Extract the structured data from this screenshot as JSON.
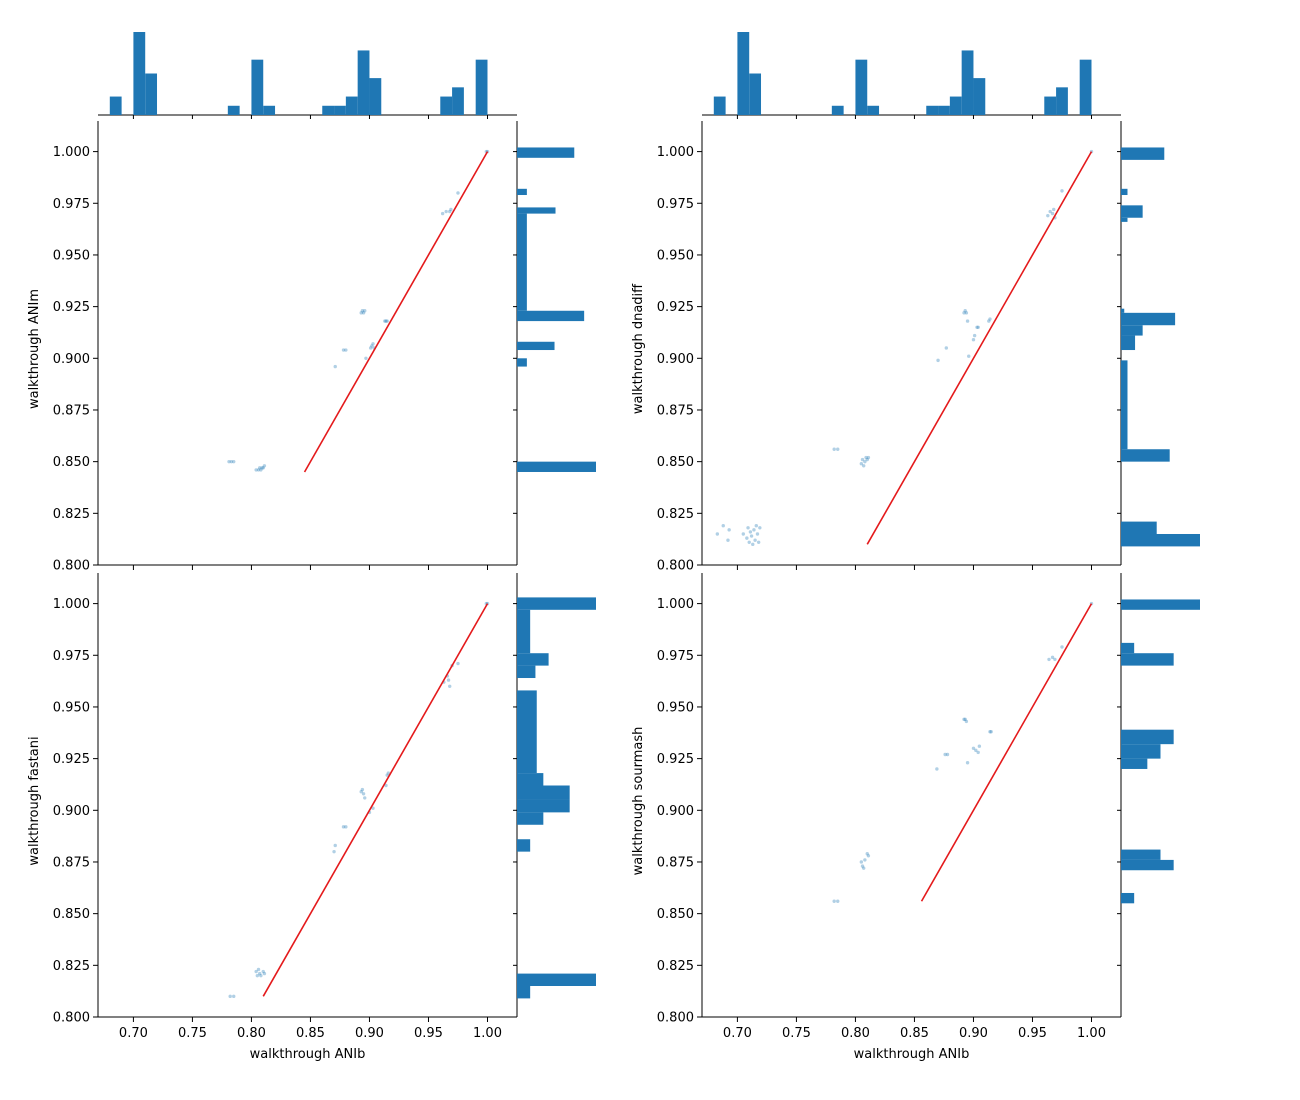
{
  "chart_data": [
    {
      "type": "scatter",
      "xlabel": "",
      "ylabel": "walkthrough ANIm",
      "show_xtick_labels": false,
      "xlim": [
        0.67,
        1.025
      ],
      "ylim": [
        0.8,
        1.009
      ],
      "x_ticks": [
        "0.70",
        "0.75",
        "0.80",
        "0.85",
        "0.90",
        "0.95",
        "1.00"
      ],
      "y_ticks": [
        "0.800",
        "0.825",
        "0.850",
        "0.875",
        "0.900",
        "0.925",
        "0.950",
        "0.975",
        "1.000"
      ],
      "line": {
        "x": [
          0.845,
          1.0
        ],
        "y": [
          0.845,
          1.0
        ],
        "color": "#e41a1c"
      },
      "points": [
        [
          0.781,
          0.85
        ],
        [
          0.783,
          0.85
        ],
        [
          0.785,
          0.85
        ],
        [
          0.804,
          0.846
        ],
        [
          0.806,
          0.846
        ],
        [
          0.807,
          0.847
        ],
        [
          0.808,
          0.846
        ],
        [
          0.809,
          0.847
        ],
        [
          0.81,
          0.847
        ],
        [
          0.811,
          0.848
        ],
        [
          0.871,
          0.896
        ],
        [
          0.878,
          0.904
        ],
        [
          0.88,
          0.904
        ],
        [
          0.893,
          0.922
        ],
        [
          0.894,
          0.923
        ],
        [
          0.895,
          0.922
        ],
        [
          0.896,
          0.923
        ],
        [
          0.897,
          0.9
        ],
        [
          0.901,
          0.905
        ],
        [
          0.902,
          0.906
        ],
        [
          0.903,
          0.907
        ],
        [
          0.904,
          0.905
        ],
        [
          0.913,
          0.918
        ],
        [
          0.914,
          0.918
        ],
        [
          0.915,
          0.918
        ],
        [
          0.962,
          0.97
        ],
        [
          0.965,
          0.971
        ],
        [
          0.968,
          0.971
        ],
        [
          0.969,
          0.972
        ],
        [
          0.975,
          0.98
        ],
        [
          0.999,
          1.0
        ],
        [
          1.0,
          1.0
        ]
      ],
      "top_histogram": {
        "bin_edges": [
          0.68,
          0.69,
          0.7,
          0.71,
          0.72,
          0.73,
          0.74,
          0.75,
          0.76,
          0.77,
          0.78,
          0.79,
          0.8,
          0.81,
          0.82,
          0.83,
          0.84,
          0.85,
          0.86,
          0.87,
          0.88,
          0.89,
          0.9,
          0.91,
          0.92,
          0.93,
          0.94,
          0.95,
          0.96,
          0.97,
          0.98,
          0.99,
          1.0
        ],
        "counts": [
          2,
          0,
          9,
          4.5,
          0,
          0,
          0,
          0,
          0,
          0,
          1,
          0,
          6,
          1,
          0,
          0,
          0,
          0,
          1,
          1,
          2,
          7,
          4,
          0,
          0,
          0,
          0,
          0,
          2,
          3,
          0,
          6
        ]
      },
      "right_histogram": {
        "bin_edges": [
          0.845,
          0.85,
          0.896,
          0.9,
          0.904,
          0.908,
          0.918,
          0.923,
          0.97,
          0.973,
          0.979,
          0.982,
          0.997,
          1.002
        ],
        "counts": [
          8,
          0,
          1,
          0,
          3.8,
          0,
          6.8,
          1,
          3.9,
          0,
          1,
          0,
          5.8
        ]
      }
    },
    {
      "type": "scatter",
      "xlabel": "",
      "ylabel": "walkthrough dnadiff",
      "show_xtick_labels": false,
      "xlim": [
        0.67,
        1.025
      ],
      "ylim": [
        0.8,
        1.009
      ],
      "x_ticks": [
        "0.70",
        "0.75",
        "0.80",
        "0.85",
        "0.90",
        "0.95",
        "1.00"
      ],
      "y_ticks": [
        "0.800",
        "0.825",
        "0.850",
        "0.875",
        "0.900",
        "0.925",
        "0.950",
        "0.975",
        "1.000"
      ],
      "line": {
        "x": [
          0.81,
          1.0
        ],
        "y": [
          0.81,
          1.0
        ],
        "color": "#e41a1c"
      },
      "points": [
        [
          0.683,
          0.815
        ],
        [
          0.688,
          0.819
        ],
        [
          0.692,
          0.812
        ],
        [
          0.693,
          0.817
        ],
        [
          0.705,
          0.815
        ],
        [
          0.708,
          0.813
        ],
        [
          0.709,
          0.818
        ],
        [
          0.71,
          0.811
        ],
        [
          0.711,
          0.816
        ],
        [
          0.712,
          0.814
        ],
        [
          0.713,
          0.81
        ],
        [
          0.714,
          0.817
        ],
        [
          0.715,
          0.812
        ],
        [
          0.716,
          0.819
        ],
        [
          0.717,
          0.815
        ],
        [
          0.718,
          0.811
        ],
        [
          0.719,
          0.818
        ],
        [
          0.782,
          0.856
        ],
        [
          0.785,
          0.856
        ],
        [
          0.805,
          0.849
        ],
        [
          0.806,
          0.851
        ],
        [
          0.807,
          0.848
        ],
        [
          0.808,
          0.85
        ],
        [
          0.809,
          0.852
        ],
        [
          0.81,
          0.851
        ],
        [
          0.811,
          0.852
        ],
        [
          0.87,
          0.899
        ],
        [
          0.877,
          0.905
        ],
        [
          0.892,
          0.922
        ],
        [
          0.893,
          0.923
        ],
        [
          0.894,
          0.922
        ],
        [
          0.895,
          0.918
        ],
        [
          0.896,
          0.901
        ],
        [
          0.9,
          0.909
        ],
        [
          0.901,
          0.911
        ],
        [
          0.903,
          0.915
        ],
        [
          0.904,
          0.915
        ],
        [
          0.913,
          0.918
        ],
        [
          0.914,
          0.919
        ],
        [
          0.963,
          0.969
        ],
        [
          0.965,
          0.971
        ],
        [
          0.967,
          0.97
        ],
        [
          0.968,
          0.972
        ],
        [
          0.969,
          0.968
        ],
        [
          0.975,
          0.981
        ],
        [
          1.0,
          1.0
        ]
      ],
      "top_histogram": {
        "bin_edges": [
          0.68,
          0.69,
          0.7,
          0.71,
          0.72,
          0.73,
          0.74,
          0.75,
          0.76,
          0.77,
          0.78,
          0.79,
          0.8,
          0.81,
          0.82,
          0.83,
          0.84,
          0.85,
          0.86,
          0.87,
          0.88,
          0.89,
          0.9,
          0.91,
          0.92,
          0.93,
          0.94,
          0.95,
          0.96,
          0.97,
          0.98,
          0.99,
          1.0
        ],
        "counts": [
          2,
          0,
          9,
          4.5,
          0,
          0,
          0,
          0,
          0,
          0,
          1,
          0,
          6,
          1,
          0,
          0,
          0,
          0,
          1,
          1,
          2,
          7,
          4,
          0,
          0,
          0,
          0,
          0,
          2,
          3,
          0,
          6
        ]
      },
      "right_histogram": {
        "bin_edges": [
          0.809,
          0.815,
          0.821,
          0.85,
          0.856,
          0.899,
          0.904,
          0.911,
          0.916,
          0.922,
          0.924,
          0.966,
          0.968,
          0.974,
          0.979,
          0.982,
          0.996,
          1.002
        ],
        "counts": [
          7.3,
          3.3,
          0,
          4.5,
          0.6,
          0,
          1.3,
          2,
          5,
          0.3,
          0,
          0.6,
          2,
          0,
          0.6,
          0,
          4
        ]
      }
    },
    {
      "type": "scatter",
      "xlabel": "walkthrough ANIb",
      "ylabel": "walkthrough fastani",
      "show_xtick_labels": true,
      "xlim": [
        0.67,
        1.025
      ],
      "ylim": [
        0.8,
        1.009
      ],
      "x_ticks": [
        "0.70",
        "0.75",
        "0.80",
        "0.85",
        "0.90",
        "0.95",
        "1.00"
      ],
      "y_ticks": [
        "0.800",
        "0.825",
        "0.850",
        "0.875",
        "0.900",
        "0.925",
        "0.950",
        "0.975",
        "1.000"
      ],
      "line": {
        "x": [
          0.81,
          1.0
        ],
        "y": [
          0.81,
          1.0
        ],
        "color": "#e41a1c"
      },
      "points": [
        [
          0.782,
          0.81
        ],
        [
          0.785,
          0.81
        ],
        [
          0.804,
          0.822
        ],
        [
          0.805,
          0.82
        ],
        [
          0.806,
          0.823
        ],
        [
          0.807,
          0.821
        ],
        [
          0.808,
          0.82
        ],
        [
          0.81,
          0.822
        ],
        [
          0.811,
          0.821
        ],
        [
          0.87,
          0.88
        ],
        [
          0.871,
          0.883
        ],
        [
          0.878,
          0.892
        ],
        [
          0.88,
          0.892
        ],
        [
          0.893,
          0.909
        ],
        [
          0.894,
          0.91
        ],
        [
          0.895,
          0.908
        ],
        [
          0.896,
          0.906
        ],
        [
          0.9,
          0.899
        ],
        [
          0.903,
          0.901
        ],
        [
          0.914,
          0.912
        ],
        [
          0.915,
          0.917
        ],
        [
          0.916,
          0.918
        ],
        [
          0.963,
          0.962
        ],
        [
          0.966,
          0.965
        ],
        [
          0.967,
          0.963
        ],
        [
          0.968,
          0.96
        ],
        [
          0.97,
          0.97
        ],
        [
          0.975,
          0.971
        ],
        [
          0.999,
          1.0
        ],
        [
          1.0,
          1.0
        ]
      ],
      "top_histogram": null,
      "right_histogram": {
        "bin_edges": [
          0.809,
          0.815,
          0.821,
          0.88,
          0.886,
          0.893,
          0.899,
          0.905,
          0.912,
          0.918,
          0.958,
          0.964,
          0.97,
          0.976,
          0.997,
          1.003
        ],
        "counts": [
          1,
          6,
          0,
          1,
          0,
          2,
          4,
          4,
          2,
          1.5,
          0,
          1.4,
          2.4,
          1,
          6
        ]
      }
    },
    {
      "type": "scatter",
      "xlabel": "walkthrough ANIb",
      "ylabel": "walkthrough sourmash",
      "show_xtick_labels": true,
      "xlim": [
        0.67,
        1.025
      ],
      "ylim": [
        0.8,
        1.009
      ],
      "x_ticks": [
        "0.70",
        "0.75",
        "0.80",
        "0.85",
        "0.90",
        "0.95",
        "1.00"
      ],
      "y_ticks": [
        "0.800",
        "0.825",
        "0.850",
        "0.875",
        "0.900",
        "0.925",
        "0.950",
        "0.975",
        "1.000"
      ],
      "line": {
        "x": [
          0.856,
          1.0
        ],
        "y": [
          0.856,
          1.0
        ],
        "color": "#e41a1c"
      },
      "points": [
        [
          0.782,
          0.856
        ],
        [
          0.785,
          0.856
        ],
        [
          0.805,
          0.875
        ],
        [
          0.806,
          0.873
        ],
        [
          0.807,
          0.872
        ],
        [
          0.808,
          0.876
        ],
        [
          0.81,
          0.879
        ],
        [
          0.811,
          0.878
        ],
        [
          0.869,
          0.92
        ],
        [
          0.876,
          0.927
        ],
        [
          0.878,
          0.927
        ],
        [
          0.892,
          0.944
        ],
        [
          0.893,
          0.944
        ],
        [
          0.894,
          0.943
        ],
        [
          0.895,
          0.923
        ],
        [
          0.9,
          0.93
        ],
        [
          0.902,
          0.929
        ],
        [
          0.904,
          0.928
        ],
        [
          0.905,
          0.931
        ],
        [
          0.914,
          0.938
        ],
        [
          0.915,
          0.938
        ],
        [
          0.964,
          0.973
        ],
        [
          0.967,
          0.974
        ],
        [
          0.969,
          0.973
        ],
        [
          0.975,
          0.979
        ],
        [
          1.0,
          1.0
        ]
      ],
      "top_histogram": null,
      "right_histogram": {
        "bin_edges": [
          0.855,
          0.86,
          0.871,
          0.876,
          0.881,
          0.92,
          0.925,
          0.932,
          0.939,
          0.947,
          0.97,
          0.976,
          0.981,
          0.997,
          1.002
        ],
        "counts": [
          1,
          0,
          4,
          3,
          0,
          2,
          3,
          4,
          0,
          0,
          4,
          1,
          0,
          6
        ]
      }
    }
  ]
}
